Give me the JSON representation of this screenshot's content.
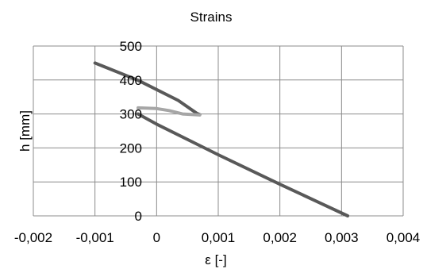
{
  "chart_data": {
    "type": "line",
    "title": "Strains",
    "xlabel": "ε [-]",
    "ylabel": "h [mm]",
    "xlim": [
      -0.002,
      0.004
    ],
    "ylim": [
      0,
      500
    ],
    "x_ticks": [
      -0.002,
      -0.001,
      0,
      0.001,
      0.002,
      0.003,
      0.004
    ],
    "x_tick_labels": [
      "-0,002",
      "-0,001",
      "0",
      "0,001",
      "0,002",
      "0,003",
      "0,004"
    ],
    "y_ticks": [
      0,
      100,
      200,
      300,
      400,
      500
    ],
    "y_tick_labels": [
      "0",
      "100",
      "200",
      "300",
      "400",
      "500"
    ],
    "grid": true,
    "legend": "none",
    "series": [
      {
        "color": "#595959",
        "points": [
          [
            -0.001,
            450
          ],
          [
            -0.0003,
            399
          ],
          [
            0.00035,
            340
          ],
          [
            0.00065,
            302
          ],
          [
            0.0007,
            298
          ]
        ]
      },
      {
        "color": "#595959",
        "points": [
          [
            -0.0003,
            300
          ],
          [
            0,
            270
          ],
          [
            0.001,
            180
          ],
          [
            0.002,
            93
          ],
          [
            0.0031,
            0
          ]
        ]
      },
      {
        "color": "#a6a6a6",
        "points": [
          [
            -0.0003,
            318
          ],
          [
            0,
            316
          ],
          [
            0.0002,
            310
          ],
          [
            0.00042,
            300
          ],
          [
            0.0007,
            297
          ]
        ]
      }
    ]
  }
}
